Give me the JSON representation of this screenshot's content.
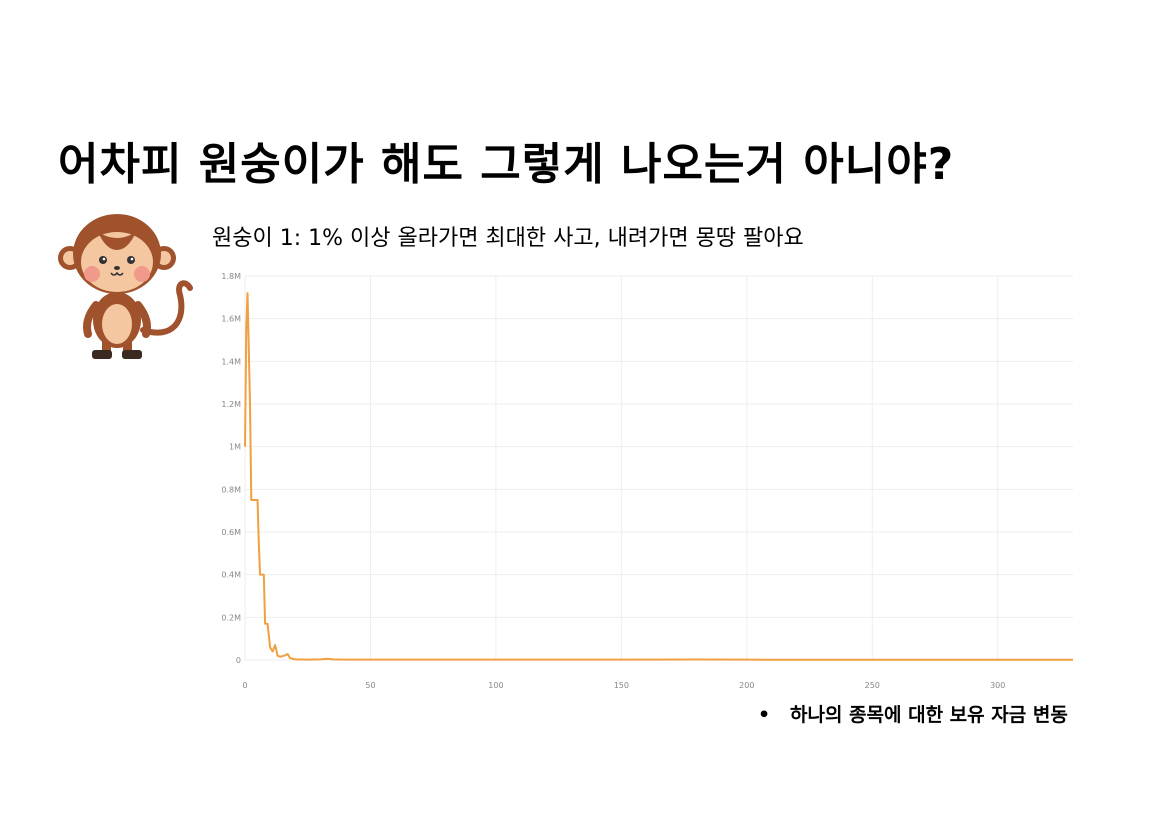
{
  "slide": {
    "title": "어차피 원숭이가 해도 그렇게 나오는거 아니야?",
    "subtitle": "원숭이 1: 1% 이상 올라가면 최대한 사고, 내려가면 몽땅 팔아요",
    "bullet_text": "하나의 종목에 대한 보유 자금 변동",
    "bullet_symbol": "•"
  },
  "chart_data": {
    "type": "line",
    "title": "",
    "xlabel": "",
    "ylabel": "",
    "xlim": [
      0,
      330
    ],
    "ylim": [
      0,
      1800000
    ],
    "x_ticks": [
      0,
      50,
      100,
      150,
      200,
      250,
      300
    ],
    "x_tick_labels": [
      "0",
      "50",
      "100",
      "150",
      "200",
      "250",
      "300"
    ],
    "y_ticks": [
      0,
      200000,
      400000,
      600000,
      800000,
      1000000,
      1200000,
      1400000,
      1600000,
      1800000
    ],
    "y_tick_labels": [
      "0",
      "0.2M",
      "0.4M",
      "0.6M",
      "0.8M",
      "1M",
      "1.2M",
      "1.4M",
      "1.6M",
      "1.8M"
    ],
    "grid": true,
    "line_color": "#f0a040",
    "series": [
      {
        "x": [
          0,
          0.5,
          1,
          2,
          2.5,
          3,
          4,
          5,
          5.5,
          6,
          7,
          7.5,
          8,
          9,
          10,
          11,
          12,
          13,
          14,
          16,
          17,
          18,
          19,
          20,
          25,
          30,
          33,
          35,
          40,
          60,
          100,
          150,
          180,
          200,
          250,
          300,
          330
        ],
        "y": [
          1000000,
          1550000,
          1720000,
          1200000,
          750000,
          750000,
          750000,
          750000,
          550000,
          400000,
          400000,
          400000,
          170000,
          170000,
          60000,
          40000,
          70000,
          20000,
          15000,
          22000,
          28000,
          8000,
          6000,
          3000,
          2000,
          3000,
          6000,
          3000,
          2000,
          1500,
          1500,
          1500,
          2500,
          1500,
          1000,
          1000,
          1000
        ]
      }
    ]
  }
}
